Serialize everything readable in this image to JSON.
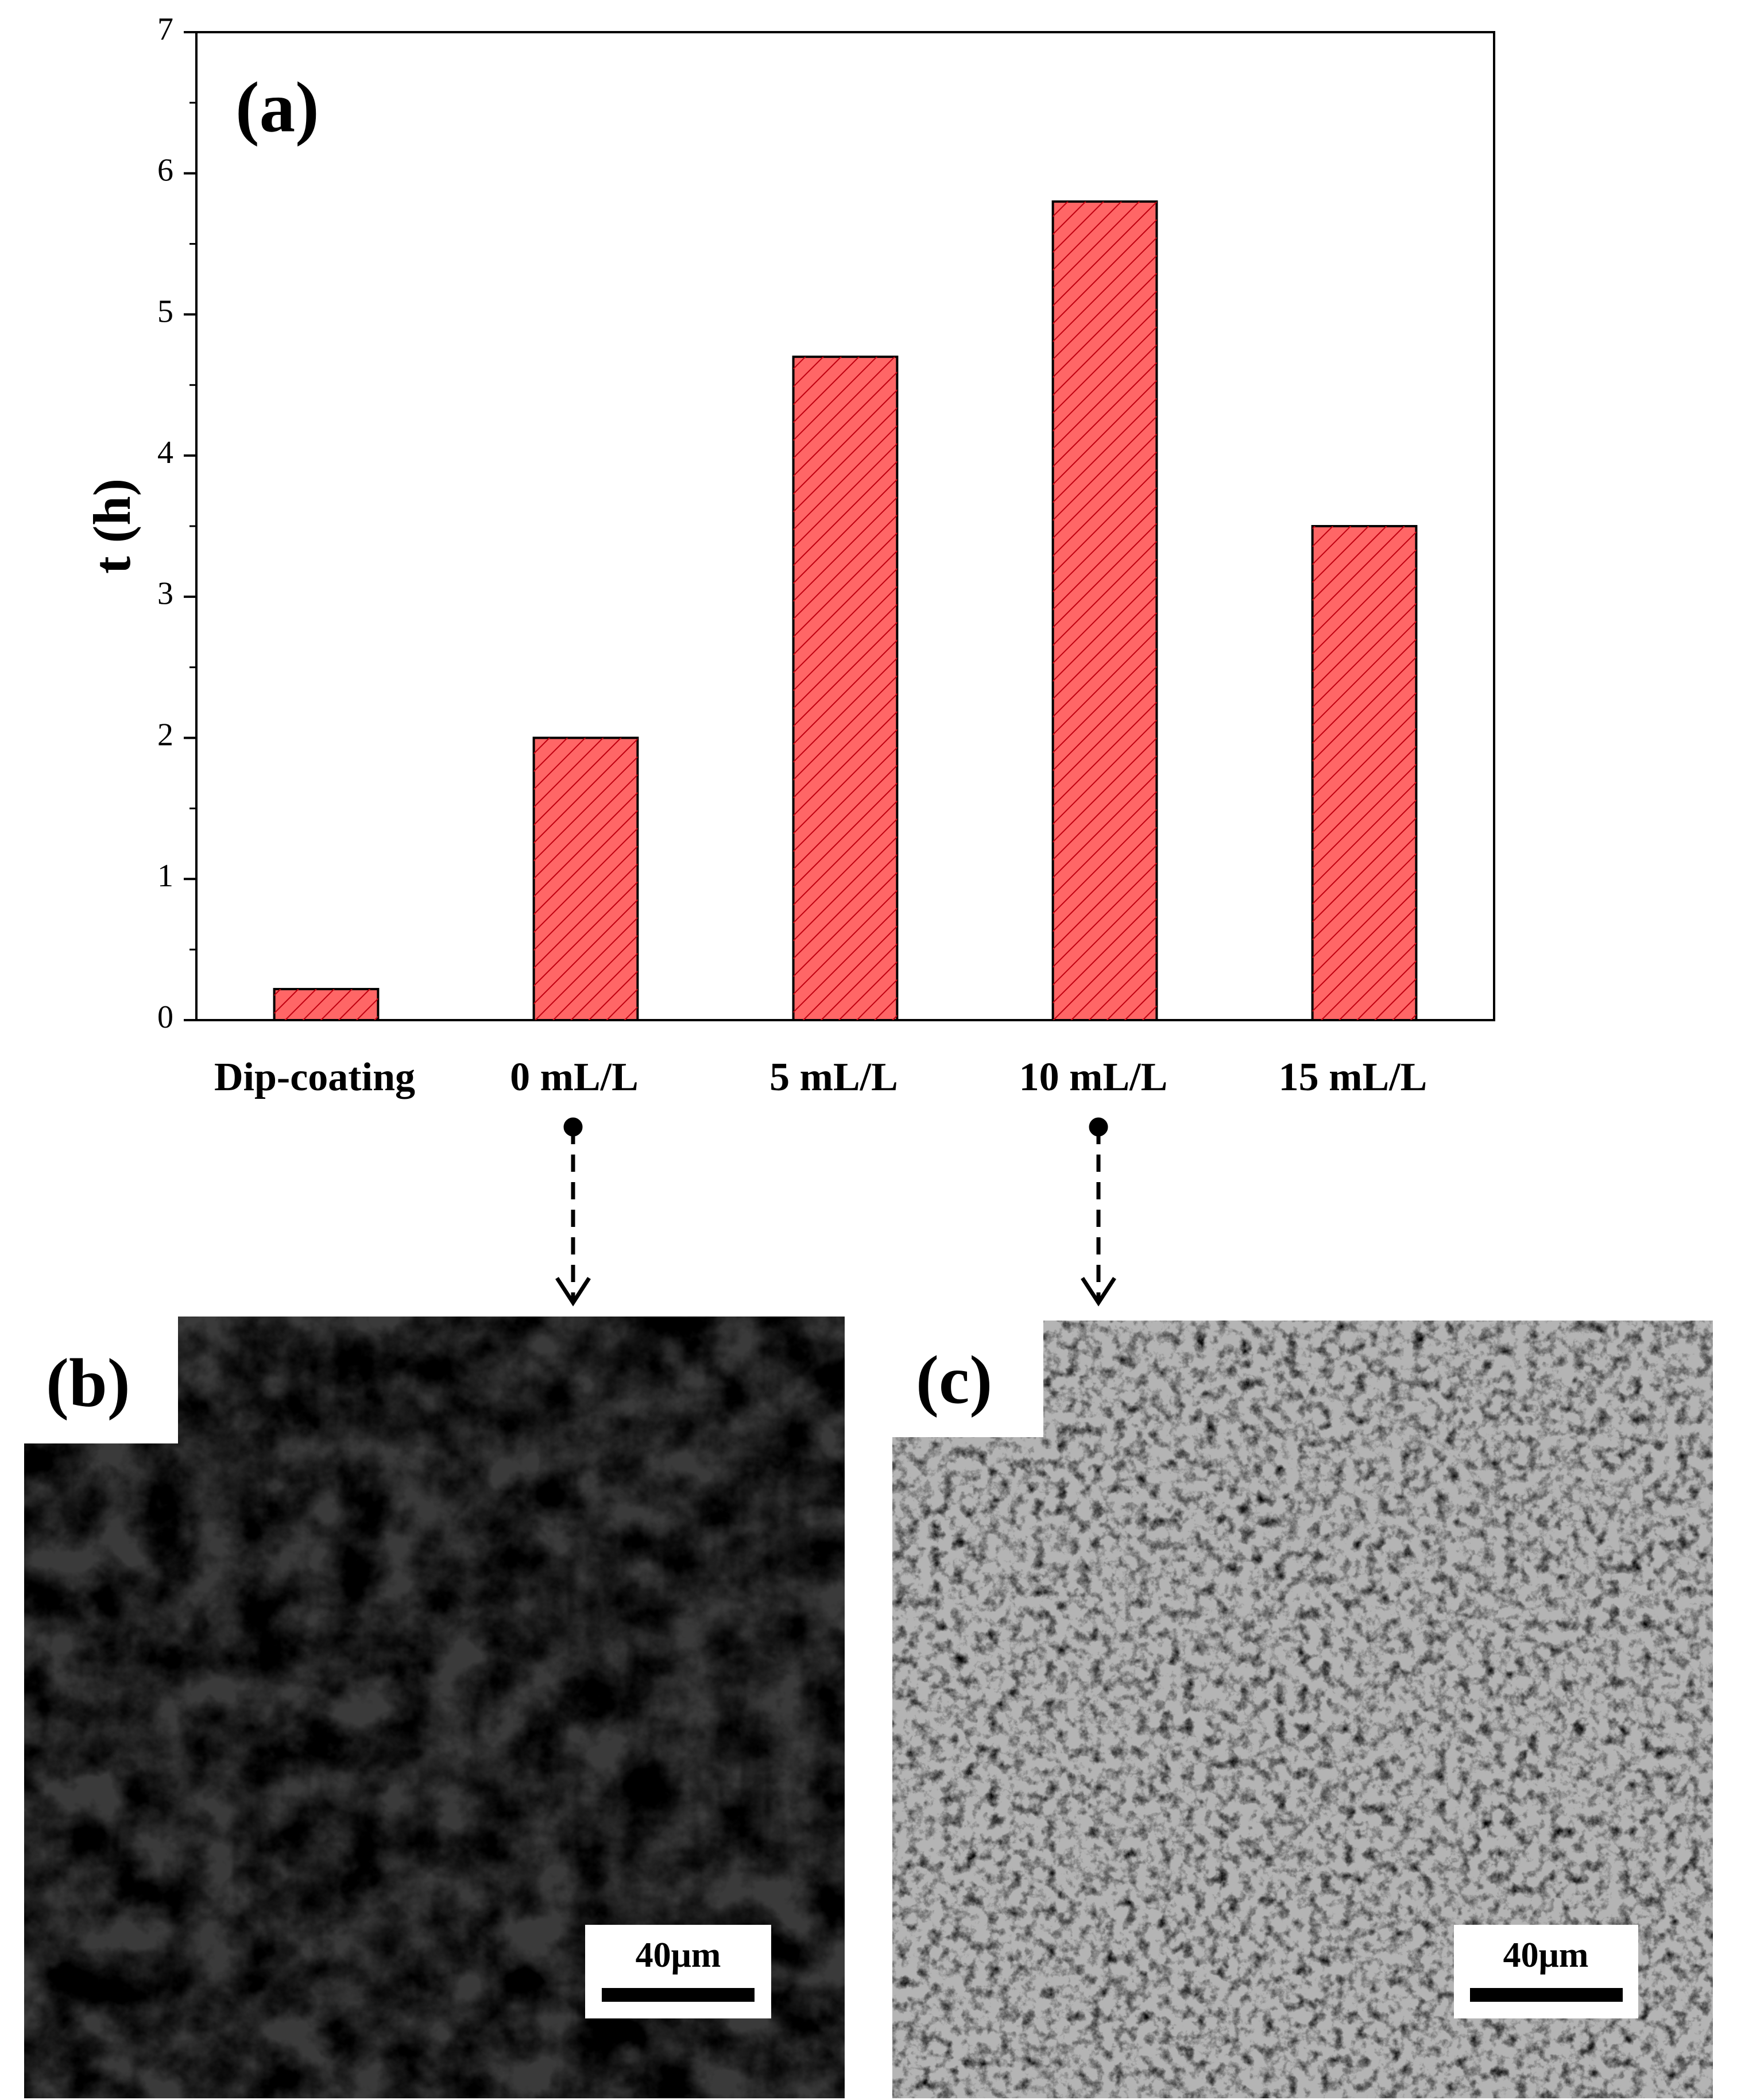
{
  "chart_data": {
    "type": "bar",
    "ylabel": "t (h)",
    "categories": [
      "Dip-coating",
      "0 mL/L",
      "5 mL/L",
      "10 mL/L",
      "15 mL/L"
    ],
    "values": [
      0.22,
      2.0,
      4.7,
      5.8,
      3.5
    ],
    "color": "#ff6666",
    "ylim": [
      0,
      7
    ],
    "yticks": [
      0,
      1,
      2,
      3,
      4,
      5,
      6,
      7
    ]
  },
  "panel_labels": [
    "(a)",
    "(b)",
    "(c)"
  ],
  "scale_bar_labels": [
    "40μm",
    "40μm"
  ]
}
